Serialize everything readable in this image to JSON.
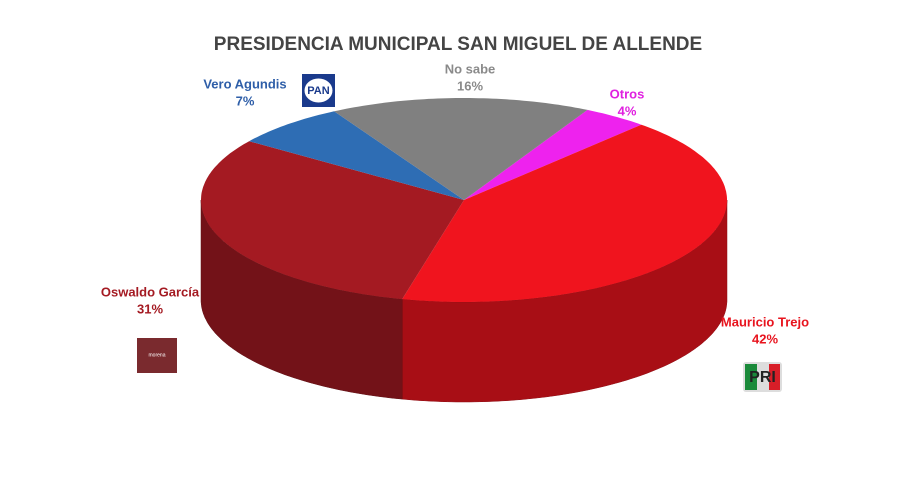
{
  "chart_data": {
    "type": "pie3d",
    "title": "PRESIDENCIA MUNICIPAL SAN MIGUEL DE ALLENDE",
    "categories": [
      "Otros",
      "Mauricio Trejo",
      "Oswaldo García",
      "Vero Agundis",
      "No sabe"
    ],
    "values": [
      4,
      42,
      31,
      7,
      16
    ],
    "value_labels": [
      "4%",
      "42%",
      "31%",
      "7%",
      "16%"
    ],
    "colors": [
      "#ee22ee",
      "#f0141e",
      "#a41a22",
      "#2e6db4",
      "#808080"
    ],
    "label_colors": [
      "#e020e0",
      "#e8141e",
      "#a41a22",
      "#2e5ea8",
      "#8a8a8a"
    ],
    "annotations": [
      "PAN",
      "morena",
      "PRI"
    ]
  }
}
